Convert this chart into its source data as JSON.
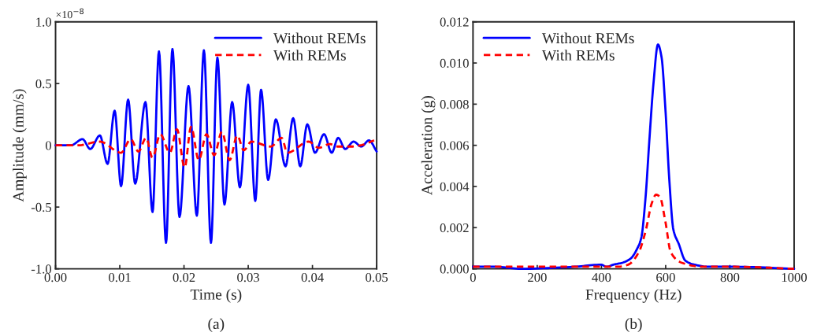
{
  "chart_data": [
    {
      "type": "line",
      "xlabel": "Time (s)",
      "ylabel": "Amplitude (mm/s)",
      "annotations": [
        "×10$^{−8}$",
        "(a)"
      ],
      "legend": "top right",
      "grid": false,
      "xlim": [
        0,
        0.05
      ],
      "xticks": [
        {
          "value": 0,
          "label": "0.00"
        },
        {
          "value": 0.01,
          "label": "0.01"
        },
        {
          "value": 0.02,
          "label": "0.02"
        },
        {
          "value": 0.03,
          "label": "0.03"
        },
        {
          "value": 0.04,
          "label": "0.04"
        },
        {
          "value": 0.05,
          "label": "0.05"
        }
      ],
      "ylim": [
        -1.0,
        1.0
      ],
      "yticks": [
        {
          "value": -1.0,
          "label": "-1.0"
        },
        {
          "value": -0.5,
          "label": "-0.5"
        },
        0,
        0.5,
        {
          "value": 1.0,
          "label": "1.0"
        }
      ],
      "series": [
        {
          "name": "Without REMs",
          "color": "#0000ff",
          "line_style": "solid",
          "x": [
            0,
            0.0024,
            0.0042,
            0.0054,
            0.0069,
            0.0081,
            0.0092,
            0.0102,
            0.0113,
            0.0124,
            0.014,
            0.0151,
            0.0161,
            0.0172,
            0.0182,
            0.0193,
            0.0207,
            0.022,
            0.0231,
            0.0242,
            0.0252,
            0.0263,
            0.0275,
            0.0287,
            0.03,
            0.0311,
            0.032,
            0.0331,
            0.0343,
            0.0358,
            0.037,
            0.0381,
            0.0392,
            0.0404,
            0.0418,
            0.043,
            0.044,
            0.0451,
            0.0464,
            0.0476,
            0.0488,
            0.05
          ],
          "values": [
            0,
            0,
            0.05,
            -0.03,
            0.08,
            -0.15,
            0.28,
            -0.33,
            0.37,
            -0.31,
            0.35,
            -0.54,
            0.76,
            -0.79,
            0.78,
            -0.58,
            0.48,
            -0.57,
            0.77,
            -0.79,
            0.71,
            -0.48,
            0.35,
            -0.34,
            0.49,
            -0.45,
            0.45,
            -0.28,
            0.21,
            -0.17,
            0.22,
            -0.17,
            0.17,
            -0.06,
            0.09,
            -0.06,
            0.06,
            -0.03,
            0.03,
            -0.01,
            0.04,
            -0.05
          ]
        },
        {
          "name": "With REMs",
          "color": "#ff0000",
          "line_style": "dashed",
          "x": [
            0,
            0.0035,
            0.0069,
            0.0102,
            0.0117,
            0.0129,
            0.0141,
            0.0151,
            0.0163,
            0.0178,
            0.0189,
            0.0201,
            0.0211,
            0.0223,
            0.0235,
            0.0247,
            0.0259,
            0.0271,
            0.0283,
            0.0293,
            0.0305,
            0.0335,
            0.0352,
            0.0361,
            0.0394,
            0.041,
            0.0427,
            0.0439,
            0.0463,
            0.0475,
            0.0496
          ],
          "values": [
            0,
            0,
            0.03,
            -0.06,
            0.05,
            -0.05,
            0.06,
            -0.1,
            0.09,
            -0.06,
            0.13,
            -0.18,
            0.15,
            -0.12,
            0.09,
            -0.08,
            0.11,
            -0.12,
            0.08,
            -0.04,
            0.03,
            -0.01,
            0.06,
            -0.06,
            0.03,
            -0.02,
            0.01,
            -0.01,
            -0.01,
            0.0,
            0.04
          ]
        }
      ]
    },
    {
      "type": "line",
      "xlabel": "Frequency (Hz)",
      "ylabel": "Acceleration (g)",
      "annotations": [
        "(b)"
      ],
      "legend": "top left",
      "grid": false,
      "xlim": [
        0,
        1000
      ],
      "xticks": [
        0,
        200,
        400,
        600,
        800,
        1000
      ],
      "ylim": [
        0,
        0.012
      ],
      "yticks": [
        {
          "value": 0,
          "label": "0.000"
        },
        {
          "value": 0.002,
          "label": "0.002"
        },
        {
          "value": 0.004,
          "label": "0.004"
        },
        {
          "value": 0.006,
          "label": "0.006"
        },
        {
          "value": 0.008,
          "label": "0.008"
        },
        {
          "value": 0.01,
          "label": "0.010"
        },
        {
          "value": 0.012,
          "label": "0.012"
        }
      ],
      "series": [
        {
          "name": "Without REMs",
          "color": "#0000ff",
          "line_style": "solid",
          "x": [
            0,
            67,
            150,
            316,
            399,
            416,
            437,
            466,
            491,
            512,
            524,
            537,
            549,
            562,
            576,
            587,
            599,
            611,
            624,
            641,
            661,
            690,
            732,
            815,
            1000
          ],
          "values": [
            0.0001,
            0.0001,
            0,
            0.0001,
            0.0002,
            0.0001,
            0.0002,
            0.0003,
            0.0005,
            0.001,
            0.0015,
            0.0034,
            0.0062,
            0.009,
            0.0109,
            0.0103,
            0.0078,
            0.0044,
            0.0019,
            0.0012,
            0.0004,
            0.0002,
            0.0001,
            0.0001,
            0
          ]
        },
        {
          "name": "With REMs",
          "color": "#ff0000",
          "line_style": "dashed",
          "x": [
            0,
            108,
            316,
            399,
            449,
            483,
            516,
            537,
            557,
            570,
            582,
            599,
            616,
            649,
            715,
            774,
            815,
            1000
          ],
          "values": [
            0.0001,
            0.0001,
            0.0001,
            0.0001,
            0.0001,
            0.0002,
            0.0008,
            0.0018,
            0.0032,
            0.0036,
            0.0035,
            0.0023,
            0.0008,
            0.0003,
            0.0001,
            0.0001,
            0.0001,
            0
          ]
        }
      ]
    }
  ]
}
